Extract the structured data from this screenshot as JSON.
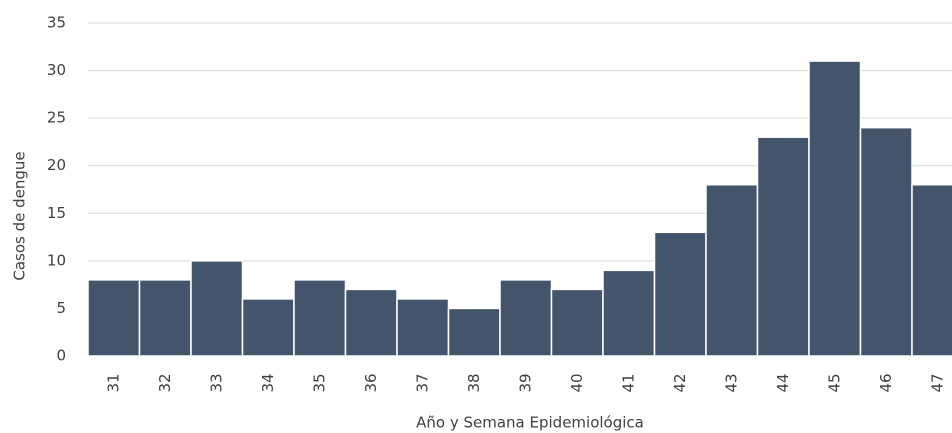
{
  "chart_data": {
    "type": "bar",
    "x_label": "Año y Semana Epidemiológica",
    "y_label": "Casos de dengue",
    "categories": [
      "31",
      "32",
      "33",
      "34",
      "35",
      "36",
      "37",
      "38",
      "39",
      "40",
      "41",
      "42",
      "43",
      "44",
      "45",
      "46",
      "47"
    ],
    "values": [
      8,
      8,
      10,
      6,
      8,
      7,
      6,
      5,
      8,
      7,
      9,
      13,
      18,
      23,
      31,
      24,
      18
    ],
    "color": "#44546a",
    "ylim": [
      0,
      35
    ],
    "yticks": [
      0,
      5,
      10,
      15,
      20,
      25,
      30,
      35
    ],
    "grid": true
  }
}
